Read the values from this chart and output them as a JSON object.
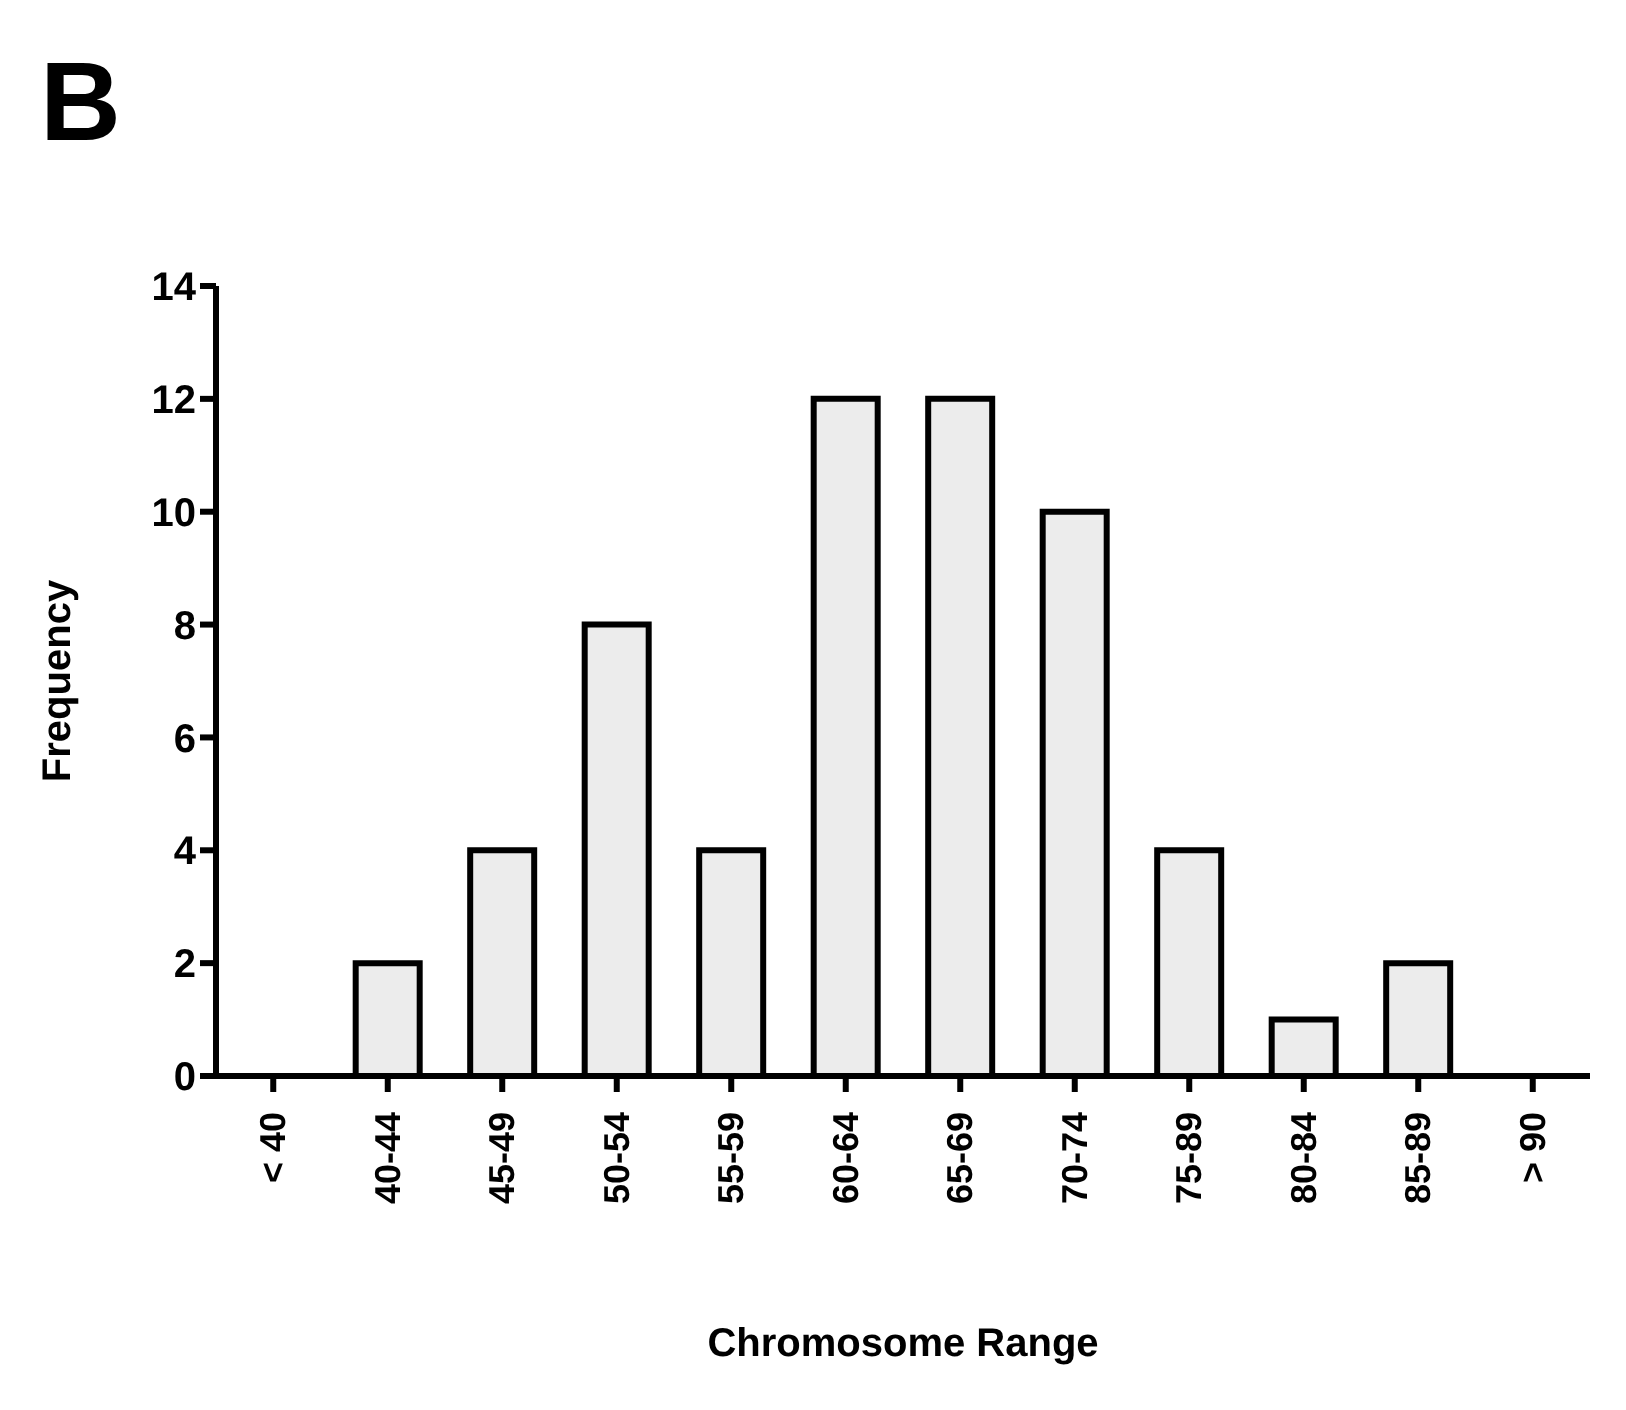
{
  "chart_data": {
    "type": "bar",
    "title": "B",
    "xlabel": "Chromosome Range",
    "ylabel": "Frequency",
    "categories": [
      "< 40",
      "40-44",
      "45-49",
      "50-54",
      "55-59",
      "60-64",
      "65-69",
      "70-74",
      "75-89",
      "80-84",
      "85-89",
      "> 90"
    ],
    "values": [
      0,
      2,
      4,
      8,
      4,
      12,
      12,
      10,
      4,
      1,
      2,
      0
    ],
    "color": "#ececec",
    "ylim": [
      0,
      14
    ],
    "yticks": [
      0,
      2,
      4,
      6,
      8,
      10,
      12,
      14
    ],
    "grid": false,
    "legend": false
  }
}
